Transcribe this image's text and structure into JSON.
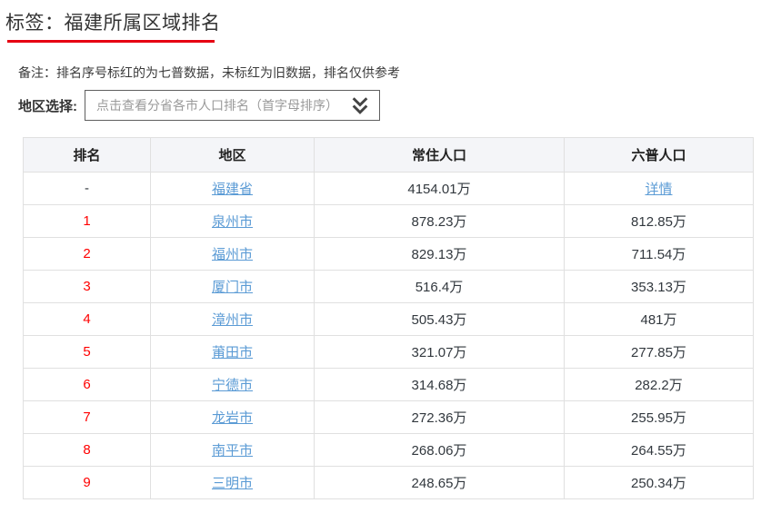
{
  "header": {
    "title": "标签：福建所属区域排名",
    "note": "备注：排名序号标红的为七普数据，未标红为旧数据，排名仅供参考"
  },
  "region_select": {
    "label": "地区选择:",
    "placeholder": "点击查看分省各市人口排名（首字母排序）",
    "icon": "double-chevron-down"
  },
  "colors": {
    "accent_red": "#e60012",
    "rank_red": "#ff0000",
    "link_blue": "#5b9bd5",
    "header_bg": "#f4f5f8",
    "table_border": "#e0e0e0"
  },
  "table": {
    "headers": [
      "排名",
      "地区",
      "常住人口",
      "六普人口"
    ],
    "rows": [
      {
        "rank": "-",
        "rank_is_red": false,
        "region": "福建省",
        "resident_population": "4154.01万",
        "six_census": "详情",
        "six_census_is_link": true
      },
      {
        "rank": "1",
        "rank_is_red": true,
        "region": "泉州市",
        "resident_population": "878.23万",
        "six_census": "812.85万",
        "six_census_is_link": false
      },
      {
        "rank": "2",
        "rank_is_red": true,
        "region": "福州市",
        "resident_population": "829.13万",
        "six_census": "711.54万",
        "six_census_is_link": false
      },
      {
        "rank": "3",
        "rank_is_red": true,
        "region": "厦门市",
        "resident_population": "516.4万",
        "six_census": "353.13万",
        "six_census_is_link": false
      },
      {
        "rank": "4",
        "rank_is_red": true,
        "region": "漳州市",
        "resident_population": "505.43万",
        "six_census": "481万",
        "six_census_is_link": false
      },
      {
        "rank": "5",
        "rank_is_red": true,
        "region": "莆田市",
        "resident_population": "321.07万",
        "six_census": "277.85万",
        "six_census_is_link": false
      },
      {
        "rank": "6",
        "rank_is_red": true,
        "region": "宁德市",
        "resident_population": "314.68万",
        "six_census": "282.2万",
        "six_census_is_link": false
      },
      {
        "rank": "7",
        "rank_is_red": true,
        "region": "龙岩市",
        "resident_population": "272.36万",
        "six_census": "255.95万",
        "six_census_is_link": false
      },
      {
        "rank": "8",
        "rank_is_red": true,
        "region": "南平市",
        "resident_population": "268.06万",
        "six_census": "264.55万",
        "six_census_is_link": false
      },
      {
        "rank": "9",
        "rank_is_red": true,
        "region": "三明市",
        "resident_population": "248.65万",
        "six_census": "250.34万",
        "six_census_is_link": false
      }
    ]
  }
}
